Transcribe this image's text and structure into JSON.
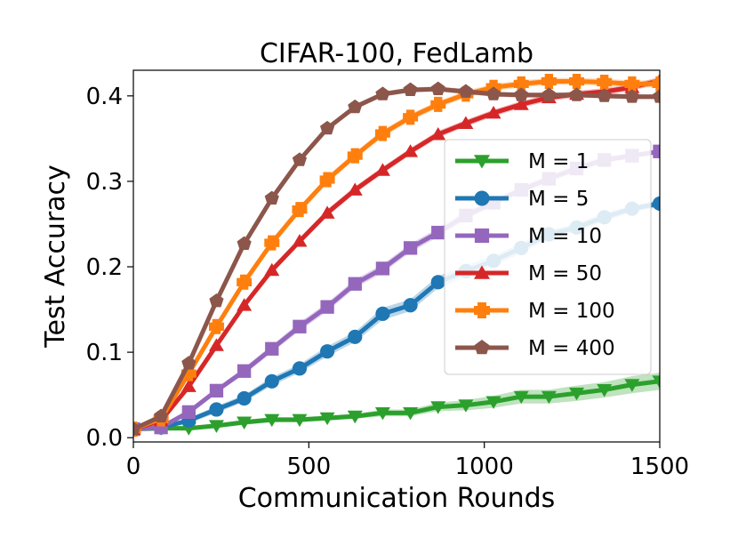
{
  "chart_data": {
    "type": "line",
    "title": "CIFAR-100, FedLamb",
    "xlabel": "Communication Rounds",
    "ylabel": "Test Accuracy",
    "xlim": [
      0,
      1500
    ],
    "ylim": [
      -0.005,
      0.43
    ],
    "xticks": [
      0,
      500,
      1000,
      1500
    ],
    "xtick_labels": [
      "0",
      "500",
      "1000",
      "1500"
    ],
    "yticks": [
      0.0,
      0.1,
      0.2,
      0.3,
      0.4
    ],
    "ytick_labels": [
      "0.0",
      "0.1",
      "0.2",
      "0.3",
      "0.4"
    ],
    "grid": false,
    "legend_position": "center-right",
    "x": [
      0,
      78.9,
      157.9,
      236.8,
      315.8,
      394.7,
      473.7,
      552.6,
      631.6,
      710.5,
      789.5,
      868.4,
      947.4,
      1026.3,
      1105.3,
      1184.2,
      1263.2,
      1342.1,
      1421.1,
      1500
    ],
    "series": [
      {
        "name": "M = 1",
        "color": "#2ca02c",
        "marker": "triangle-down",
        "values": [
          0.01,
          0.011,
          0.011,
          0.014,
          0.018,
          0.021,
          0.021,
          0.023,
          0.025,
          0.029,
          0.029,
          0.036,
          0.038,
          0.042,
          0.048,
          0.048,
          0.052,
          0.056,
          0.062,
          0.066
        ],
        "band": [
          0.002,
          0.002,
          0.002,
          0.002,
          0.003,
          0.003,
          0.003,
          0.003,
          0.003,
          0.004,
          0.004,
          0.005,
          0.006,
          0.007,
          0.008,
          0.008,
          0.009,
          0.009,
          0.01,
          0.01
        ]
      },
      {
        "name": "M = 5",
        "color": "#1f77b4",
        "marker": "circle",
        "values": [
          0.01,
          0.012,
          0.02,
          0.033,
          0.046,
          0.066,
          0.081,
          0.101,
          0.118,
          0.145,
          0.155,
          0.182,
          0.195,
          0.207,
          0.222,
          0.238,
          0.246,
          0.258,
          0.268,
          0.274
        ],
        "band": [
          0.002,
          0.002,
          0.003,
          0.004,
          0.004,
          0.005,
          0.005,
          0.006,
          0.006,
          0.007,
          0.007,
          0.007,
          0.007,
          0.006,
          0.006,
          0.005,
          0.005,
          0.005,
          0.004,
          0.004
        ]
      },
      {
        "name": "M = 10",
        "color": "#9467bd",
        "marker": "square",
        "values": [
          0.01,
          0.012,
          0.03,
          0.055,
          0.078,
          0.104,
          0.13,
          0.153,
          0.18,
          0.198,
          0.222,
          0.24,
          0.26,
          0.275,
          0.29,
          0.303,
          0.315,
          0.325,
          0.33,
          0.335
        ],
        "band": [
          0.002,
          0.002,
          0.003,
          0.003,
          0.004,
          0.004,
          0.005,
          0.005,
          0.005,
          0.005,
          0.005,
          0.005,
          0.005,
          0.004,
          0.004,
          0.004,
          0.004,
          0.004,
          0.003,
          0.003
        ]
      },
      {
        "name": "M = 50",
        "color": "#d62728",
        "marker": "triangle-up",
        "values": [
          0.01,
          0.02,
          0.06,
          0.108,
          0.155,
          0.196,
          0.23,
          0.263,
          0.29,
          0.313,
          0.335,
          0.355,
          0.368,
          0.38,
          0.39,
          0.398,
          0.402,
          0.405,
          0.41,
          0.418
        ],
        "band": [
          0.002,
          0.002,
          0.004,
          0.004,
          0.004,
          0.004,
          0.004,
          0.004,
          0.004,
          0.004,
          0.004,
          0.004,
          0.004,
          0.004,
          0.004,
          0.004,
          0.004,
          0.004,
          0.004,
          0.004
        ]
      },
      {
        "name": "M = 100",
        "color": "#ff7f0e",
        "marker": "plus",
        "values": [
          0.01,
          0.022,
          0.075,
          0.13,
          0.182,
          0.228,
          0.267,
          0.302,
          0.33,
          0.356,
          0.375,
          0.39,
          0.402,
          0.41,
          0.414,
          0.417,
          0.417,
          0.416,
          0.414,
          0.414
        ],
        "band": [
          0.002,
          0.002,
          0.004,
          0.004,
          0.004,
          0.004,
          0.004,
          0.004,
          0.004,
          0.004,
          0.004,
          0.004,
          0.004,
          0.004,
          0.004,
          0.004,
          0.004,
          0.004,
          0.004,
          0.004
        ]
      },
      {
        "name": "M = 400",
        "color": "#8c564b",
        "marker": "pentagon",
        "values": [
          0.01,
          0.025,
          0.087,
          0.16,
          0.227,
          0.28,
          0.325,
          0.362,
          0.387,
          0.402,
          0.407,
          0.408,
          0.405,
          0.402,
          0.401,
          0.401,
          0.401,
          0.4,
          0.399,
          0.399
        ],
        "band": [
          0.002,
          0.002,
          0.003,
          0.003,
          0.003,
          0.003,
          0.003,
          0.003,
          0.003,
          0.003,
          0.003,
          0.003,
          0.003,
          0.003,
          0.003,
          0.003,
          0.003,
          0.003,
          0.003,
          0.003
        ]
      }
    ]
  }
}
